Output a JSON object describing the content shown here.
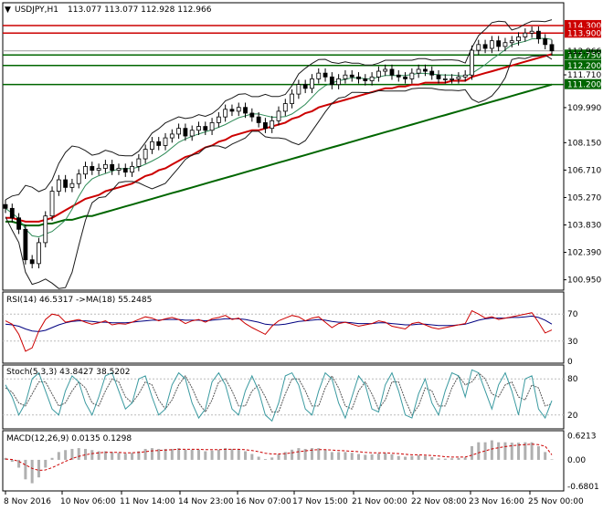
{
  "window": {
    "menu_icon": "triangle-down-icon",
    "symbol_timeframe": "USDJPY,H1",
    "ohlc": "113.077 113.077 112.928 112.966"
  },
  "chart_data": [
    {
      "type": "candlestick",
      "panel": "price",
      "yticks": [
        "111.710",
        "109.990",
        "108.150",
        "106.710",
        "105.270",
        "103.830",
        "102.390",
        "100.950"
      ],
      "ylim": [
        100.5,
        115.4
      ],
      "hlines": [
        {
          "label": "114.300",
          "value": 114.3,
          "color": "#cc0000"
        },
        {
          "label": "113.900",
          "value": 113.9,
          "color": "#cc0000"
        },
        {
          "label": "112.750",
          "value": 112.75,
          "color": "#006600"
        },
        {
          "label": "112.200",
          "value": 112.2,
          "color": "#006600"
        },
        {
          "label": "111.200",
          "value": 111.2,
          "color": "#006600"
        }
      ],
      "current_price_label": "112.966",
      "current_price": 112.966,
      "series_close": [
        104.7,
        104.2,
        103.6,
        102.0,
        101.8,
        102.9,
        104.3,
        105.6,
        106.2,
        105.8,
        106.0,
        106.5,
        106.9,
        106.7,
        106.8,
        107.0,
        106.7,
        106.8,
        106.6,
        106.9,
        107.3,
        107.8,
        108.2,
        108.0,
        108.4,
        108.6,
        108.9,
        108.5,
        108.8,
        109.0,
        108.8,
        109.2,
        109.5,
        109.9,
        109.8,
        110.0,
        109.7,
        109.5,
        109.2,
        108.9,
        109.3,
        109.8,
        110.2,
        110.7,
        111.2,
        111.0,
        111.5,
        111.8,
        111.6,
        111.2,
        111.5,
        111.7,
        111.6,
        111.5,
        111.4,
        111.6,
        111.9,
        112.0,
        111.7,
        111.6,
        111.5,
        111.8,
        112.0,
        111.9,
        111.7,
        111.5,
        111.5,
        111.5,
        111.6,
        111.7,
        113.0,
        113.3,
        113.1,
        113.5,
        113.2,
        113.4,
        113.5,
        113.7,
        113.9,
        114.0,
        113.6,
        113.3,
        112.97
      ],
      "ma_red": [
        104.2,
        104.2,
        104.1,
        104.0,
        104.0,
        104.0,
        104.1,
        104.2,
        104.4,
        104.6,
        104.8,
        105.0,
        105.2,
        105.3,
        105.4,
        105.6,
        105.7,
        105.8,
        105.9,
        106.0,
        106.2,
        106.4,
        106.5,
        106.7,
        106.8,
        107.0,
        107.2,
        107.4,
        107.5,
        107.7,
        107.9,
        108.0,
        108.2,
        108.3,
        108.5,
        108.6,
        108.7,
        108.8,
        108.8,
        108.9,
        109.0,
        109.1,
        109.2,
        109.4,
        109.5,
        109.7,
        109.8,
        110.0,
        110.1,
        110.2,
        110.3,
        110.4,
        110.5,
        110.6,
        110.7,
        110.8,
        110.9,
        111.0,
        111.0,
        111.1,
        111.1,
        111.2,
        111.2,
        111.3,
        111.3,
        111.3,
        111.3,
        111.4,
        111.4,
        111.4,
        111.6,
        111.7,
        111.8,
        111.9,
        112.0,
        112.1,
        112.2,
        112.3,
        112.4,
        112.5,
        112.6,
        112.7,
        112.8
      ],
      "ma_green": [
        104.0,
        104.0,
        103.9,
        103.8,
        103.8,
        103.8,
        103.9,
        103.9,
        104.0,
        104.1,
        104.1,
        104.2,
        104.3,
        104.3,
        104.4,
        104.5,
        104.6,
        104.7,
        104.8,
        104.9,
        105.0,
        105.1,
        105.2,
        105.3,
        105.4,
        105.5,
        105.6,
        105.7,
        105.8,
        105.9,
        106.0,
        106.1,
        106.2,
        106.3,
        106.4,
        106.5,
        106.6,
        106.7,
        106.8,
        106.9,
        107.0,
        107.1,
        107.2,
        107.3,
        107.4,
        107.5,
        107.6,
        107.7,
        107.8,
        107.9,
        108.0,
        108.1,
        108.2,
        108.3,
        108.4,
        108.5,
        108.6,
        108.7,
        108.8,
        108.9,
        109.0,
        109.1,
        109.2,
        109.3,
        109.4,
        109.5,
        109.6,
        109.7,
        109.8,
        109.9,
        110.0,
        110.1,
        110.2,
        110.3,
        110.4,
        110.5,
        110.6,
        110.7,
        110.8,
        110.9,
        111.0,
        111.1,
        111.2
      ]
    },
    {
      "type": "line",
      "panel": "rsi",
      "title": "RSI(14) 46.5317  ->MA(18) 55.2485",
      "yticks": [
        "70",
        "30",
        "0"
      ],
      "ylim": [
        0,
        100
      ],
      "rsi": [
        60,
        55,
        40,
        15,
        20,
        45,
        62,
        70,
        68,
        58,
        60,
        62,
        58,
        55,
        57,
        60,
        54,
        56,
        55,
        58,
        62,
        66,
        64,
        60,
        63,
        65,
        62,
        56,
        60,
        62,
        58,
        63,
        65,
        68,
        62,
        64,
        56,
        50,
        45,
        40,
        52,
        60,
        64,
        68,
        66,
        60,
        64,
        66,
        58,
        50,
        56,
        58,
        55,
        52,
        54,
        56,
        60,
        58,
        52,
        50,
        48,
        56,
        58,
        54,
        50,
        48,
        50,
        52,
        54,
        56,
        75,
        70,
        64,
        66,
        62,
        64,
        66,
        68,
        70,
        72,
        58,
        42,
        46.5
      ],
      "rsi_ma": [
        55,
        54,
        52,
        48,
        45,
        44,
        46,
        50,
        54,
        57,
        59,
        60,
        60,
        59,
        58,
        58,
        57,
        57,
        57,
        58,
        59,
        60,
        61,
        61,
        62,
        62,
        62,
        61,
        61,
        61,
        60,
        61,
        62,
        63,
        63,
        63,
        62,
        60,
        58,
        55,
        54,
        54,
        55,
        57,
        59,
        60,
        61,
        62,
        61,
        59,
        58,
        58,
        57,
        56,
        56,
        56,
        57,
        57,
        56,
        55,
        54,
        54,
        55,
        55,
        54,
        53,
        53,
        53,
        54,
        55,
        58,
        61,
        63,
        64,
        64,
        64,
        65,
        65,
        66,
        67,
        65,
        61,
        55.2
      ]
    },
    {
      "type": "line",
      "panel": "stochastic",
      "title": "Stoch(5,3,3) 43.8427 38.5202",
      "yticks": [
        "80",
        "20"
      ],
      "ylim": [
        0,
        100
      ],
      "main": [
        70,
        50,
        20,
        40,
        80,
        90,
        60,
        30,
        20,
        60,
        85,
        75,
        40,
        20,
        50,
        85,
        90,
        60,
        30,
        40,
        80,
        85,
        50,
        20,
        30,
        70,
        90,
        80,
        40,
        15,
        30,
        75,
        90,
        70,
        30,
        20,
        60,
        85,
        60,
        20,
        10,
        40,
        85,
        90,
        70,
        30,
        20,
        60,
        90,
        80,
        40,
        15,
        50,
        85,
        70,
        30,
        25,
        70,
        90,
        60,
        20,
        15,
        55,
        80,
        40,
        20,
        60,
        90,
        85,
        50,
        95,
        90,
        60,
        30,
        70,
        90,
        60,
        20,
        80,
        85,
        30,
        15,
        43.8
      ],
      "signal": [
        65,
        58,
        40,
        35,
        55,
        75,
        75,
        55,
        35,
        40,
        60,
        75,
        65,
        40,
        35,
        60,
        80,
        75,
        50,
        40,
        55,
        75,
        70,
        45,
        30,
        45,
        70,
        85,
        65,
        40,
        25,
        45,
        75,
        80,
        60,
        35,
        35,
        60,
        70,
        50,
        25,
        25,
        55,
        80,
        80,
        60,
        35,
        35,
        65,
        85,
        65,
        35,
        30,
        60,
        75,
        55,
        30,
        45,
        75,
        75,
        45,
        20,
        35,
        65,
        60,
        35,
        35,
        65,
        85,
        70,
        75,
        90,
        80,
        55,
        50,
        70,
        75,
        50,
        45,
        70,
        65,
        35,
        38.5
      ]
    },
    {
      "type": "bar",
      "panel": "macd",
      "title": "MACD(12,26,9) 0.0135 0.1298",
      "yticks": [
        "0.6213",
        "0.00",
        "-0.6801"
      ],
      "ylim": [
        -0.75,
        0.7
      ],
      "macd": [
        0.05,
        -0.05,
        -0.2,
        -0.5,
        -0.6,
        -0.45,
        -0.2,
        0.05,
        0.2,
        0.25,
        0.28,
        0.3,
        0.28,
        0.25,
        0.22,
        0.22,
        0.2,
        0.18,
        0.16,
        0.18,
        0.22,
        0.28,
        0.3,
        0.28,
        0.28,
        0.28,
        0.3,
        0.26,
        0.26,
        0.26,
        0.22,
        0.24,
        0.26,
        0.3,
        0.28,
        0.28,
        0.22,
        0.15,
        0.08,
        0.02,
        0.06,
        0.14,
        0.2,
        0.26,
        0.3,
        0.28,
        0.3,
        0.3,
        0.26,
        0.2,
        0.2,
        0.2,
        0.18,
        0.15,
        0.13,
        0.14,
        0.16,
        0.17,
        0.14,
        0.1,
        0.08,
        0.1,
        0.12,
        0.1,
        0.07,
        0.04,
        0.03,
        0.04,
        0.05,
        0.06,
        0.35,
        0.45,
        0.45,
        0.5,
        0.45,
        0.45,
        0.44,
        0.44,
        0.45,
        0.45,
        0.35,
        0.2,
        0.0135
      ],
      "signal": [
        0.02,
        0.01,
        -0.04,
        -0.13,
        -0.22,
        -0.27,
        -0.26,
        -0.2,
        -0.12,
        -0.04,
        0.03,
        0.09,
        0.13,
        0.16,
        0.18,
        0.19,
        0.19,
        0.19,
        0.18,
        0.18,
        0.19,
        0.21,
        0.23,
        0.24,
        0.25,
        0.26,
        0.27,
        0.27,
        0.27,
        0.27,
        0.26,
        0.26,
        0.26,
        0.27,
        0.27,
        0.27,
        0.26,
        0.24,
        0.21,
        0.17,
        0.15,
        0.15,
        0.16,
        0.18,
        0.21,
        0.23,
        0.25,
        0.26,
        0.26,
        0.25,
        0.24,
        0.23,
        0.22,
        0.21,
        0.19,
        0.18,
        0.18,
        0.18,
        0.17,
        0.16,
        0.14,
        0.13,
        0.13,
        0.12,
        0.11,
        0.1,
        0.08,
        0.07,
        0.07,
        0.07,
        0.12,
        0.18,
        0.23,
        0.28,
        0.31,
        0.34,
        0.36,
        0.38,
        0.39,
        0.4,
        0.39,
        0.35,
        0.1298
      ]
    }
  ],
  "time_axis": [
    "8 Nov 2016",
    "10 Nov 06:00",
    "11 Nov 14:00",
    "14 Nov 23:00",
    "16 Nov 07:00",
    "17 Nov 15:00",
    "21 Nov 00:00",
    "22 Nov 08:00",
    "23 Nov 16:00",
    "25 Nov 00:00"
  ],
  "colors": {
    "up_candle": "#ffffff",
    "down_candle": "#000000",
    "support_line": "#006600",
    "resistance_line": "#cc0000",
    "ma_fast": "#cc0000",
    "ma_slow": "#006600",
    "rsi_line": "#cc0000",
    "rsi_ma_line": "#000080",
    "stoch_main": "#3a9aa0",
    "stoch_signal": "#555555",
    "macd_hist": "#b0b0b0",
    "macd_signal": "#cc0000"
  }
}
